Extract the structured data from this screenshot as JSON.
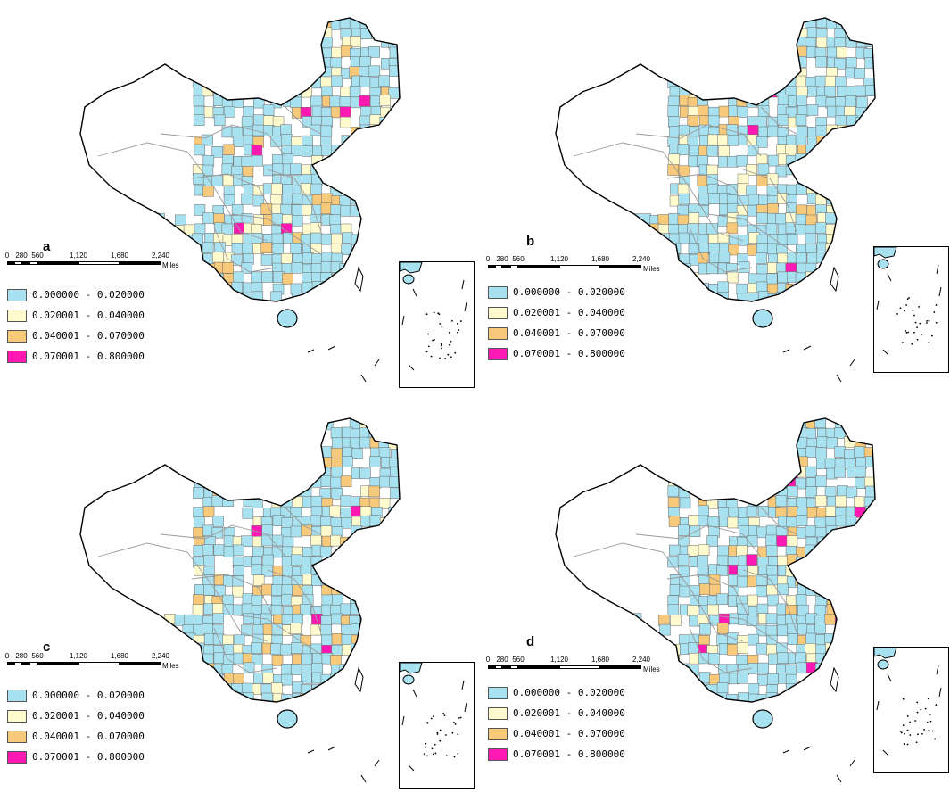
{
  "figure": {
    "panels": [
      {
        "id": "a",
        "letter": "a"
      },
      {
        "id": "b",
        "letter": "b"
      },
      {
        "id": "c",
        "letter": "c"
      },
      {
        "id": "d",
        "letter": "d"
      }
    ]
  },
  "legend": {
    "classes": [
      {
        "label": "0.000000 - 0.020000",
        "color": "#a8e1ef"
      },
      {
        "label": "0.020001 - 0.040000",
        "color": "#fffacd"
      },
      {
        "label": "0.040001 - 0.070000",
        "color": "#f7c97a"
      },
      {
        "label": "0.070001 - 0.800000",
        "color": "#ff19b2"
      }
    ]
  },
  "scalebar": {
    "ticks": [
      "0",
      "280",
      "560",
      "1,120",
      "1,680",
      "2,240"
    ],
    "units": "Miles"
  },
  "colors": {
    "outline": "#000000",
    "province_border": "#9a9a9a",
    "prefecture_border": "#6a6a6a",
    "background": "#ffffff"
  }
}
